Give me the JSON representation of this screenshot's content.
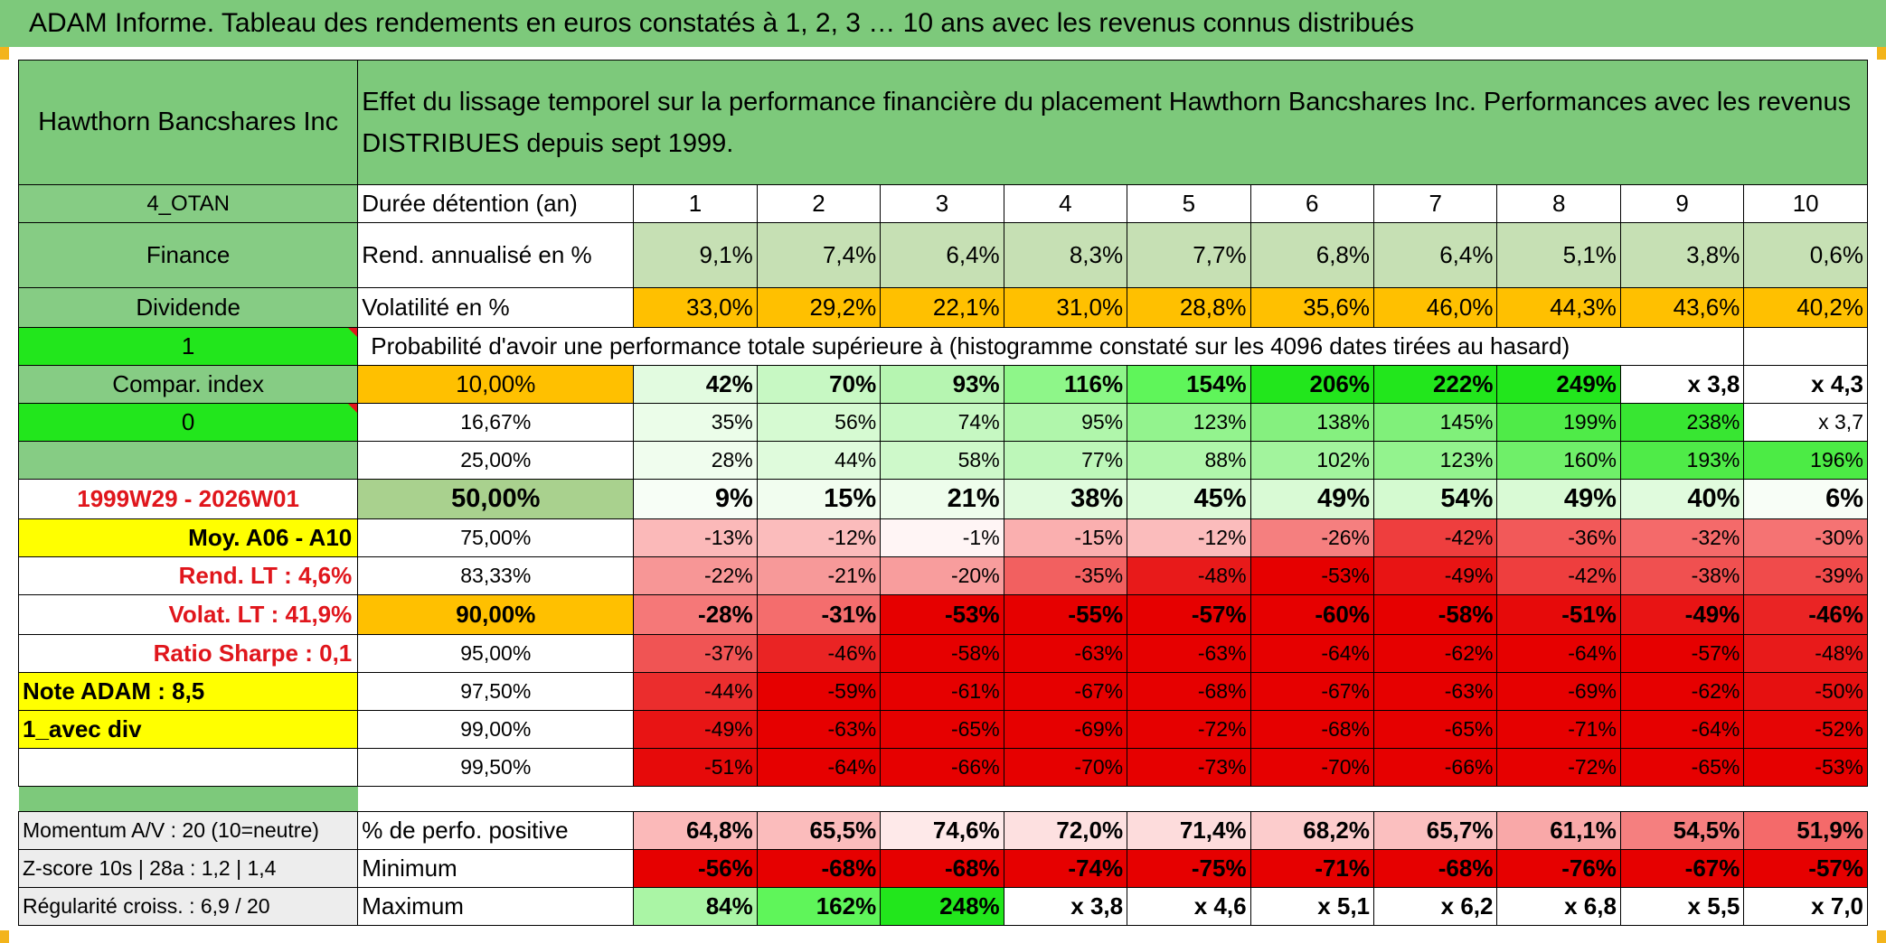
{
  "title": "ADAM Informe. Tableau des rendements en euros constatés à 1, 2, 3 … 10 ans avec les revenus connus distribués",
  "fund_name": "Hawthorn Bancshares Inc",
  "description": "Effet du lissage temporel sur la performance financière du placement Hawthorn Bancshares Inc. Performances avec les revenus DISTRIBUES depuis sept 1999.",
  "side": {
    "code": "4_OTAN",
    "sector": "Finance",
    "type": "Dividende",
    "flag1": "1",
    "compar_index": "Compar. index",
    "flag0": "0",
    "period": "1999W29 - 2026W01",
    "moy": "Moy. A06 - A10",
    "rend_lt": "Rend. LT :   4,6%",
    "volat_lt": "Volat. LT :   41,9%",
    "sharpe": "Ratio Sharpe :    0,1",
    "note": "Note ADAM : 8,5",
    "avec_div": "1_avec div"
  },
  "header_row": {
    "label": "Durée détention (an)",
    "years": [
      "1",
      "2",
      "3",
      "4",
      "5",
      "6",
      "7",
      "8",
      "9",
      "10"
    ]
  },
  "rend_row": {
    "label": "Rend. annualisé en %",
    "values": [
      "9,1%",
      "7,4%",
      "6,4%",
      "8,3%",
      "7,7%",
      "6,8%",
      "6,4%",
      "5,1%",
      "3,8%",
      "0,6%"
    ]
  },
  "vol_row": {
    "label": "Volatilité en %",
    "values": [
      "33,0%",
      "29,2%",
      "22,1%",
      "31,0%",
      "28,8%",
      "35,6%",
      "46,0%",
      "44,3%",
      "43,6%",
      "40,2%"
    ]
  },
  "prob_caption": "Probabilité d'avoir une performance totale supérieure à (histogramme constaté sur les 4096 dates tirées au hasard)",
  "prob_rows": [
    {
      "pct": "10,00%",
      "values": [
        "42%",
        "70%",
        "93%",
        "116%",
        "154%",
        "206%",
        "222%",
        "249%",
        "x 3,8",
        "x 4,3"
      ],
      "colors": [
        "#e2fbe0",
        "#c7f8c3",
        "#b6f5b1",
        "#8ef689",
        "#5ff55a",
        "#22e61c",
        "#22e61c",
        "#22e61c",
        "#ffffff",
        "#ffffff"
      ]
    },
    {
      "pct": "16,67%",
      "values": [
        "35%",
        "56%",
        "74%",
        "95%",
        "123%",
        "138%",
        "145%",
        "199%",
        "238%",
        "x 3,7"
      ],
      "colors": [
        "#ebfde9",
        "#d6fad2",
        "#c6f8c2",
        "#b0f6ab",
        "#93f38e",
        "#85f07f",
        "#80f07a",
        "#4feb48",
        "#38e632",
        "#ffffff"
      ]
    },
    {
      "pct": "25,00%",
      "values": [
        "28%",
        "44%",
        "58%",
        "77%",
        "88%",
        "102%",
        "123%",
        "160%",
        "193%",
        "196%"
      ],
      "colors": [
        "#f0fdee",
        "#dffbdc",
        "#cef9ca",
        "#bdf7b9",
        "#b0f6ab",
        "#a2f49d",
        "#93f38e",
        "#6fef69",
        "#4feb48",
        "#4ceb45"
      ]
    },
    {
      "pct": "50,00%",
      "values": [
        "9%",
        "15%",
        "21%",
        "38%",
        "45%",
        "49%",
        "54%",
        "49%",
        "40%",
        "6%"
      ],
      "colors": [
        "#f7fef6",
        "#f1fdef",
        "#eefdec",
        "#e0fbdd",
        "#dcfbd9",
        "#d9fad5",
        "#d4fad0",
        "#d9fad5",
        "#e0fbdd",
        "#f8fef7"
      ]
    },
    {
      "pct": "75,00%",
      "values": [
        "-13%",
        "-12%",
        "-1%",
        "-15%",
        "-12%",
        "-26%",
        "-42%",
        "-36%",
        "-32%",
        "-30%"
      ],
      "colors": [
        "#fbb9b9",
        "#fbbcbc",
        "#fff5f5",
        "#faafaf",
        "#fbbcbc",
        "#f57f7f",
        "#ee3e3e",
        "#f25959",
        "#f46a6a",
        "#f57373"
      ]
    },
    {
      "pct": "83,33%",
      "values": [
        "-22%",
        "-21%",
        "-20%",
        "-35%",
        "-48%",
        "-53%",
        "-49%",
        "-42%",
        "-38%",
        "-39%"
      ],
      "colors": [
        "#f79696",
        "#f79999",
        "#f89d9d",
        "#f26060",
        "#e81a1a",
        "#e60000",
        "#e81414",
        "#ee3e3e",
        "#f05050",
        "#f04b4b"
      ]
    },
    {
      "pct": "90,00%",
      "values": [
        "-28%",
        "-31%",
        "-53%",
        "-55%",
        "-57%",
        "-60%",
        "-58%",
        "-51%",
        "-49%",
        "-46%"
      ],
      "colors": [
        "#f57878",
        "#f46d6d",
        "#e60000",
        "#e60000",
        "#e60000",
        "#e60000",
        "#e60000",
        "#e60a0a",
        "#e81414",
        "#ea2424"
      ]
    },
    {
      "pct": "95,00%",
      "values": [
        "-37%",
        "-46%",
        "-58%",
        "-63%",
        "-63%",
        "-64%",
        "-62%",
        "-64%",
        "-57%",
        "-48%"
      ],
      "colors": [
        "#f05454",
        "#ea2424",
        "#e60000",
        "#e60000",
        "#e60000",
        "#e60000",
        "#e60000",
        "#e60000",
        "#e60000",
        "#e81a1a"
      ]
    },
    {
      "pct": "97,50%",
      "values": [
        "-44%",
        "-59%",
        "-61%",
        "-67%",
        "-68%",
        "-67%",
        "-63%",
        "-69%",
        "-62%",
        "-50%"
      ],
      "colors": [
        "#eb2d2d",
        "#e60000",
        "#e60000",
        "#e60000",
        "#e60000",
        "#e60000",
        "#e60000",
        "#e60000",
        "#e60000",
        "#e61010"
      ]
    },
    {
      "pct": "99,00%",
      "values": [
        "-49%",
        "-63%",
        "-65%",
        "-69%",
        "-72%",
        "-68%",
        "-65%",
        "-71%",
        "-64%",
        "-52%"
      ],
      "colors": [
        "#e81414",
        "#e60000",
        "#e60000",
        "#e60000",
        "#e60000",
        "#e60000",
        "#e60000",
        "#e60000",
        "#e60000",
        "#e60505"
      ]
    },
    {
      "pct": "99,50%",
      "values": [
        "-51%",
        "-64%",
        "-66%",
        "-70%",
        "-73%",
        "-70%",
        "-66%",
        "-72%",
        "-65%",
        "-53%"
      ],
      "colors": [
        "#e60a0a",
        "#e60000",
        "#e60000",
        "#e60000",
        "#e60000",
        "#e60000",
        "#e60000",
        "#e60000",
        "#e60000",
        "#e60000"
      ]
    }
  ],
  "bottom": {
    "momentum": "Momentum A/V : 20 (10=neutre)",
    "zscore": "Z-score 10s | 28a : 1,2 | 1,4",
    "regularite": "Régularité croiss. : 6,9 / 20",
    "positive": {
      "label": "% de perfo. positive",
      "values": [
        "64,8%",
        "65,5%",
        "74,6%",
        "72,0%",
        "71,4%",
        "68,2%",
        "65,7%",
        "61,1%",
        "54,5%",
        "51,9%"
      ],
      "colors": [
        "#fbb9b9",
        "#fbbcbc",
        "#fee9e9",
        "#fde0e0",
        "#fddcdc",
        "#fccccc",
        "#fbbfbf",
        "#f9a8a8",
        "#f57f7f",
        "#f46a6a"
      ]
    },
    "minimum": {
      "label": "Minimum",
      "values": [
        "-56%",
        "-68%",
        "-68%",
        "-74%",
        "-75%",
        "-71%",
        "-68%",
        "-76%",
        "-67%",
        "-57%"
      ],
      "colors": [
        "#e60000",
        "#e60000",
        "#e60000",
        "#e60000",
        "#e60000",
        "#e60000",
        "#e60000",
        "#e60000",
        "#e60000",
        "#e60000"
      ]
    },
    "maximum": {
      "label": "Maximum",
      "values": [
        "84%",
        "162%",
        "248%",
        "x 3,8",
        "x 4,6",
        "x 5,1",
        "x 6,2",
        "x 6,8",
        "x 5,5",
        "x 7,0"
      ],
      "colors": [
        "#aaf5a5",
        "#5ff55a",
        "#22e61c",
        "#ffffff",
        "#ffffff",
        "#ffffff",
        "#ffffff",
        "#ffffff",
        "#ffffff",
        "#ffffff"
      ]
    }
  }
}
